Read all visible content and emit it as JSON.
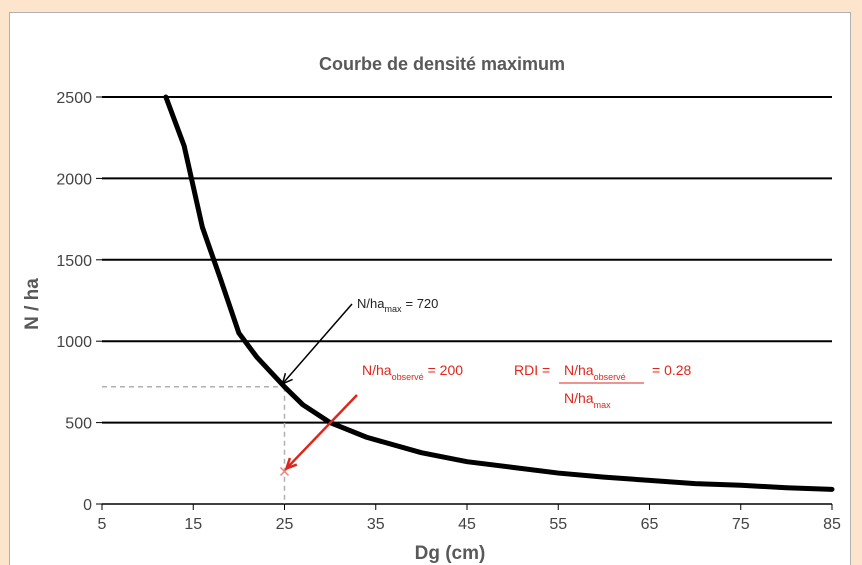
{
  "chart_data": {
    "type": "line",
    "title": "Courbe de densité maximum",
    "xlabel": "Dg (cm)",
    "ylabel": "N / ha",
    "xlim": [
      5,
      85
    ],
    "ylim": [
      0,
      2500
    ],
    "xticks": [
      "5",
      "15",
      "25",
      "35",
      "45",
      "55",
      "65",
      "75",
      "85"
    ],
    "yticks": [
      "0",
      "500",
      "1000",
      "1500",
      "2000",
      "2500"
    ],
    "grid": "horizontal",
    "series": [
      {
        "x": [
          12,
          14,
          16,
          18,
          20,
          22,
          25,
          27,
          30,
          34,
          40,
          45,
          50,
          55,
          60,
          65,
          70,
          75,
          80,
          85
        ],
        "y": [
          2500,
          2200,
          1700,
          1380,
          1050,
          900,
          720,
          610,
          500,
          410,
          315,
          260,
          225,
          190,
          165,
          145,
          125,
          115,
          100,
          90
        ],
        "color": "#000000"
      }
    ],
    "observed_point": {
      "x": 25,
      "y": 200,
      "color": "#e68a80"
    },
    "reference_point": {
      "x": 25,
      "y": 720
    },
    "annotations": {
      "max": {
        "prefix": "N/ha",
        "sub": "max",
        "suffix": "= 720"
      },
      "observed": {
        "prefix": "N/ha",
        "sub": "observé",
        "suffix": "= 200"
      },
      "rdi": {
        "label": "RDI =",
        "num_prefix": "N/ha",
        "num_sub": "observé",
        "den_prefix": "N/ha",
        "den_sub": "max",
        "result": "= 0.28"
      }
    },
    "colors": {
      "annotation_red": "#e0261b",
      "guide": "#b0b0b0"
    }
  }
}
